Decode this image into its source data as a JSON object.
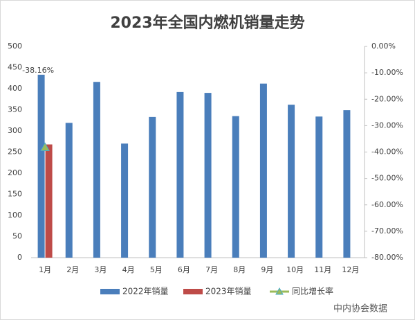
{
  "chart_data": {
    "type": "bar",
    "title": "2023年全国内燃机销量走势",
    "categories": [
      "1月",
      "2月",
      "3月",
      "4月",
      "5月",
      "6月",
      "7月",
      "8月",
      "9月",
      "10月",
      "11月",
      "12月"
    ],
    "series": [
      {
        "name": "2022年销量",
        "type": "bar",
        "color": "#4a7ebb",
        "values": [
          433,
          319,
          416,
          270,
          333,
          392,
          390,
          335,
          412,
          362,
          334,
          349
        ]
      },
      {
        "name": "2023年销量",
        "type": "bar",
        "color": "#be4b48",
        "values": [
          268,
          null,
          null,
          null,
          null,
          null,
          null,
          null,
          null,
          null,
          null,
          null
        ]
      },
      {
        "name": "同比增长率",
        "type": "line",
        "axis": "y2",
        "color": "#9bbb59",
        "marker": "triangle",
        "values": [
          -38.16,
          null,
          null,
          null,
          null,
          null,
          null,
          null,
          null,
          null,
          null,
          null
        ],
        "value_labels": [
          "-38.16%",
          null,
          null,
          null,
          null,
          null,
          null,
          null,
          null,
          null,
          null,
          null
        ]
      }
    ],
    "ylim": [
      0,
      500
    ],
    "yticks": [
      0,
      50,
      100,
      150,
      200,
      250,
      300,
      350,
      400,
      450,
      500
    ],
    "y2lim": [
      -80,
      0
    ],
    "y2ticks": [
      {
        "value": 0,
        "label": "0.00%"
      },
      {
        "value": -10,
        "label": "-10.00%"
      },
      {
        "value": -20,
        "label": "-20.00%"
      },
      {
        "value": -30,
        "label": "-30.00%"
      },
      {
        "value": -40,
        "label": "-40.00%"
      },
      {
        "value": -50,
        "label": "-50.00%"
      },
      {
        "value": -60,
        "label": "-60.00%"
      },
      {
        "value": -70,
        "label": "-70.00%"
      },
      {
        "value": -80,
        "label": "-80.00%"
      }
    ],
    "grid": false,
    "legend": "bottom",
    "source": "中内协会数据"
  }
}
